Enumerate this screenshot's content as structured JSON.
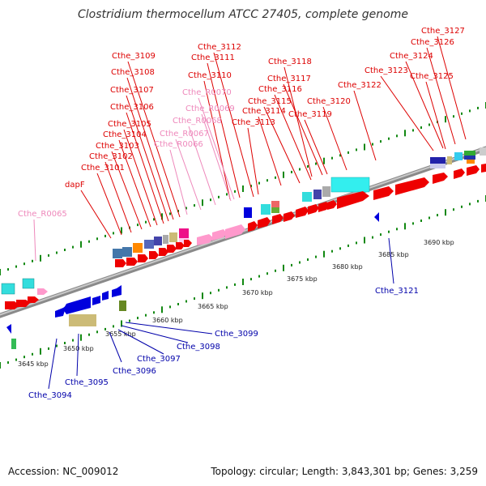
{
  "title": "Clostridium thermocellum ATCC 27405, complete genome",
  "footer": {
    "accession_label": "Accession:",
    "accession": "NC_009012",
    "topology_label": "Topology:",
    "topology": "circular",
    "length_label": "Length:",
    "length": "3,843,301 bp",
    "genes_label": "Genes:",
    "genes": "3,259"
  },
  "colors": {
    "label_red": "#dd0000",
    "label_pink": "#ee88bb",
    "label_blue": "#0000aa",
    "forward_gene": "#ee0000",
    "reverse_gene": "#0000dd",
    "rna": "#ff99cc",
    "backbone": "#888888",
    "tick": "#118811"
  },
  "ticks": [
    {
      "label": "3645 kbp"
    },
    {
      "label": "3650 kbp"
    },
    {
      "label": "3655 kbp"
    },
    {
      "label": "3660 kbp"
    },
    {
      "label": "3665 kbp"
    },
    {
      "label": "3670 kbp"
    },
    {
      "label": "3675 kbp"
    },
    {
      "label": "3680 kbp"
    },
    {
      "label": "3685 kbp"
    },
    {
      "label": "3690 kbp"
    }
  ],
  "labels_top": [
    {
      "text": "Cthe_3127",
      "color": "red"
    },
    {
      "text": "Cthe_3126",
      "color": "red"
    },
    {
      "text": "Cthe_3124",
      "color": "red"
    },
    {
      "text": "Cthe_3123",
      "color": "red"
    },
    {
      "text": "Cthe_3125",
      "color": "red"
    },
    {
      "text": "Cthe_3122",
      "color": "red"
    },
    {
      "text": "Cthe_3118",
      "color": "red"
    },
    {
      "text": "Cthe_3117",
      "color": "red"
    },
    {
      "text": "Cthe_3116",
      "color": "red"
    },
    {
      "text": "Cthe_3115",
      "color": "red"
    },
    {
      "text": "Cthe_3120",
      "color": "red"
    },
    {
      "text": "Cthe_3114",
      "color": "red"
    },
    {
      "text": "Cthe_3119",
      "color": "red"
    },
    {
      "text": "Cthe_3113",
      "color": "red"
    },
    {
      "text": "Cthe_3112",
      "color": "red"
    },
    {
      "text": "Cthe_3111",
      "color": "red"
    },
    {
      "text": "Cthe_3110",
      "color": "red"
    },
    {
      "text": "Cthe_R0070",
      "color": "pink"
    },
    {
      "text": "Cthe_R0069",
      "color": "pink"
    },
    {
      "text": "Cthe_R0068",
      "color": "pink"
    },
    {
      "text": "Cthe_R0067",
      "color": "pink"
    },
    {
      "text": "Cthe_R0066",
      "color": "pink"
    },
    {
      "text": "Cthe_3109",
      "color": "red"
    },
    {
      "text": "Cthe_3108",
      "color": "red"
    },
    {
      "text": "Cthe_3107",
      "color": "red"
    },
    {
      "text": "Cthe_3106",
      "color": "red"
    },
    {
      "text": "Cthe_3105",
      "color": "red"
    },
    {
      "text": "Cthe_3104",
      "color": "red"
    },
    {
      "text": "Cthe_3103",
      "color": "red"
    },
    {
      "text": "Cthe_3102",
      "color": "red"
    },
    {
      "text": "Cthe_3101",
      "color": "red"
    },
    {
      "text": "dapF",
      "color": "red"
    },
    {
      "text": "Cthe_R0065",
      "color": "pink"
    }
  ],
  "labels_bottom": [
    {
      "text": "Cthe_3121",
      "color": "blue"
    },
    {
      "text": "Cthe_3099",
      "color": "blue"
    },
    {
      "text": "Cthe_3098",
      "color": "blue"
    },
    {
      "text": "Cthe_3097",
      "color": "blue"
    },
    {
      "text": "Cthe_3096",
      "color": "blue"
    },
    {
      "text": "Cthe_3095",
      "color": "blue"
    },
    {
      "text": "Cthe_3094",
      "color": "blue"
    }
  ]
}
